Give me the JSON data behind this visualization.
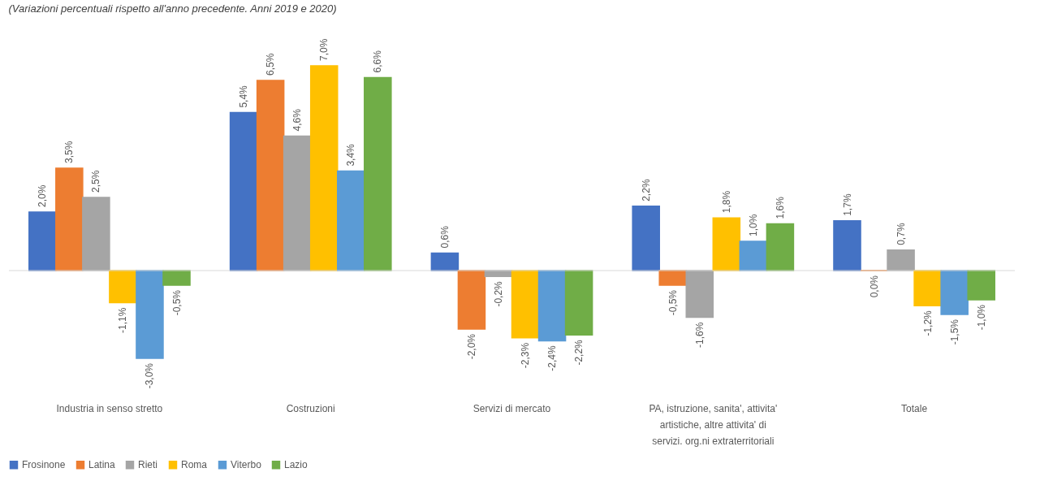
{
  "chart_data": {
    "type": "bar",
    "subtitle": "(Variazioni percentuali rispetto all'anno precedente. Anni 2019 e 2020)",
    "categories": [
      "Industria in senso stretto",
      "Costruzioni",
      "Servizi di mercato",
      "PA, istruzione, sanita', attivita' artistiche, altre attivita' di servizi. org.ni extraterritoriali",
      "Totale"
    ],
    "series": [
      {
        "name": "Frosinone",
        "color": "#4472c4",
        "values": [
          2.0,
          5.4,
          0.6,
          2.2,
          1.7
        ],
        "value_labels": [
          "2,0%",
          "5,4%",
          "0,6%",
          "2,2%",
          "1,7%"
        ]
      },
      {
        "name": "Latina",
        "color": "#ed7d31",
        "values": [
          3.5,
          6.5,
          -2.0,
          -0.5,
          0.0
        ],
        "value_labels": [
          "3,5%",
          "6,5%",
          "-2,0%",
          "-0,5%",
          "0,0%"
        ]
      },
      {
        "name": "Rieti",
        "color": "#a5a5a5",
        "values": [
          2.5,
          4.6,
          -0.2,
          -1.6,
          0.7
        ],
        "value_labels": [
          "2,5%",
          "4,6%",
          "-0,2%",
          "-1,6%",
          "0,7%"
        ]
      },
      {
        "name": "Roma",
        "color": "#ffc000",
        "values": [
          -1.1,
          7.0,
          -2.3,
          1.8,
          -1.2
        ],
        "value_labels": [
          "-1,1%",
          "7,0%",
          "-2,3%",
          "1,8%",
          "-1,2%"
        ]
      },
      {
        "name": "Viterbo",
        "color": "#5b9bd5",
        "values": [
          -3.0,
          3.4,
          -2.4,
          1.0,
          -1.5
        ],
        "value_labels": [
          "-3,0%",
          "3,4%",
          "-2,4%",
          "1,0%",
          "-1,5%"
        ]
      },
      {
        "name": "Lazio",
        "color": "#70ad47",
        "values": [
          -0.5,
          6.6,
          -2.2,
          1.6,
          -1.0
        ],
        "value_labels": [
          "-0,5%",
          "6,6%",
          "-2,2%",
          "1,6%",
          "-1,0%"
        ]
      }
    ],
    "legend": "bottom",
    "grid": false
  }
}
